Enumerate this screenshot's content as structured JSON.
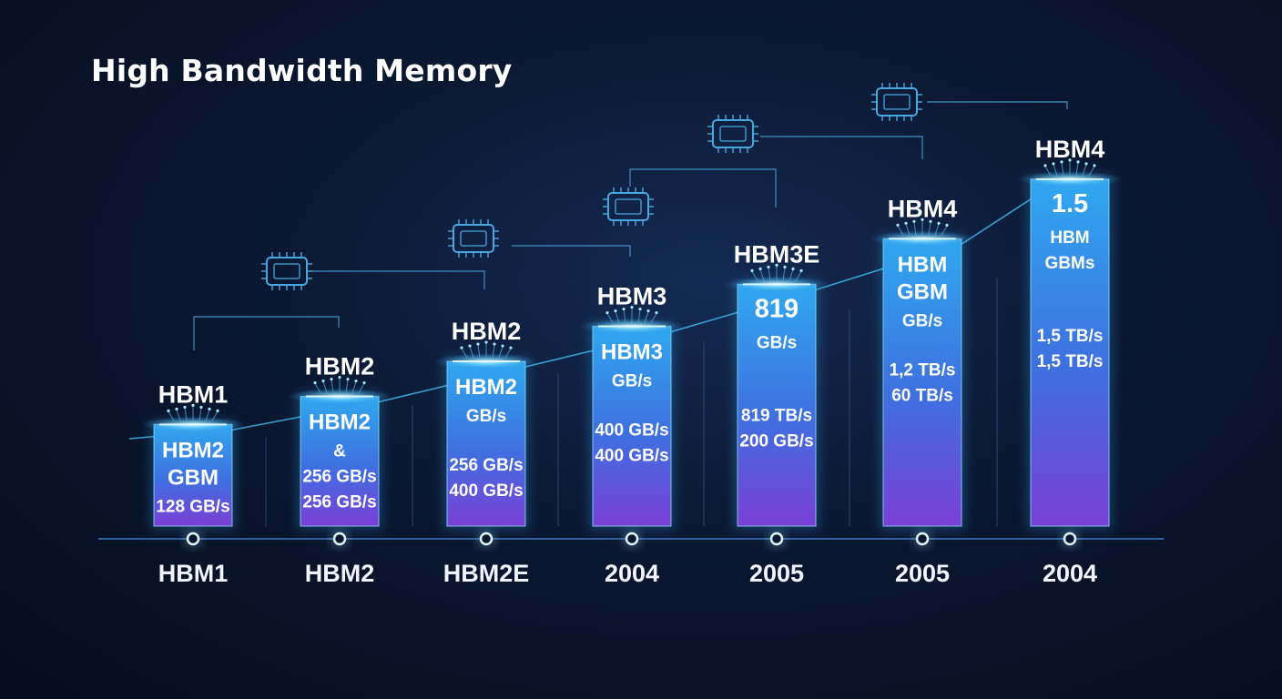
{
  "title": "High Bandwidth Memory",
  "colors": {
    "bar_top": "#2fa8ef",
    "bar_bottom": "#7a3fd6",
    "bar_edge": "#8fe2ff",
    "glow": "#9fe9ff",
    "line": "#3fb4e8",
    "axis": "#3a66a8",
    "circuit": "#48a8dd"
  },
  "chart_data": {
    "type": "bar",
    "title": "High Bandwidth Memory",
    "categories": [
      "HBM1",
      "HBM2",
      "HBM2E",
      "2004",
      "2005",
      "2005",
      "2004"
    ],
    "bar_labels": [
      "HBM1",
      "HBM2",
      "HBM2",
      "HBM3",
      "HBM3E",
      "HBM4",
      "HBM4"
    ],
    "relative_heights": [
      0.29,
      0.37,
      0.47,
      0.57,
      0.69,
      0.82,
      0.99
    ],
    "bar_text": [
      [
        {
          "t": "HBM2",
          "s": "big"
        },
        {
          "t": "GBM",
          "s": "big"
        },
        {
          "t": "128 GB/s",
          "s": "small"
        }
      ],
      [
        {
          "t": "HBM2",
          "s": "big"
        },
        {
          "t": "&",
          "s": "small"
        },
        {
          "t": "256 GB/s",
          "s": "small"
        },
        {
          "t": "256 GB/s",
          "s": "small"
        }
      ],
      [
        {
          "t": "HBM2",
          "s": "big"
        },
        {
          "t": "GB/s",
          "s": "small"
        },
        {
          "t": "",
          "s": "gap"
        },
        {
          "t": "256 GB/s",
          "s": "small"
        },
        {
          "t": "400 GB/s",
          "s": "small"
        }
      ],
      [
        {
          "t": "HBM3",
          "s": "big"
        },
        {
          "t": "GB/s",
          "s": "small"
        },
        {
          "t": "",
          "s": "gap"
        },
        {
          "t": "400 GB/s",
          "s": "small"
        },
        {
          "t": "400 GB/s",
          "s": "small"
        }
      ],
      [
        {
          "t": "819",
          "s": "huge"
        },
        {
          "t": "GB/s",
          "s": "small"
        },
        {
          "t": "",
          "s": "gap"
        },
        {
          "t": "",
          "s": "gap"
        },
        {
          "t": "819 TB/s",
          "s": "small"
        },
        {
          "t": "200 GB/s",
          "s": "small"
        }
      ],
      [
        {
          "t": "HBM",
          "s": "big"
        },
        {
          "t": "GBM",
          "s": "big"
        },
        {
          "t": "GB/s",
          "s": "small"
        },
        {
          "t": "",
          "s": "gap"
        },
        {
          "t": "1,2 TB/s",
          "s": "small"
        },
        {
          "t": "60 TB/s",
          "s": "small"
        }
      ],
      [
        {
          "t": "1.5",
          "s": "huge"
        },
        {
          "t": "HBM",
          "s": "small"
        },
        {
          "t": "GBMs",
          "s": "small"
        },
        {
          "t": "",
          "s": "gap"
        },
        {
          "t": "",
          "s": "gap"
        },
        {
          "t": "1,5 TB/s",
          "s": "small"
        },
        {
          "t": "1,5 TB/s",
          "s": "small"
        }
      ]
    ],
    "grid": false,
    "legend": "none"
  },
  "icons": [
    "chip-icon",
    "chip-icon",
    "chip-icon",
    "chip-icon",
    "chip-icon"
  ]
}
